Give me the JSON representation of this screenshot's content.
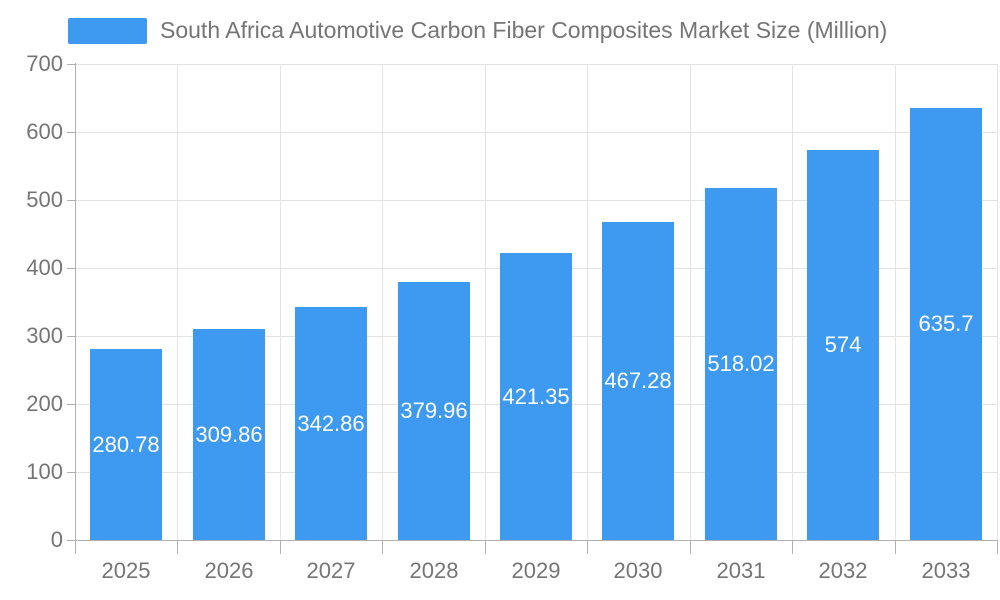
{
  "legend": {
    "label": "South Africa Automotive Carbon Fiber Composites Market Size (Million)"
  },
  "chart_data": {
    "type": "bar",
    "title": "South Africa Automotive Carbon Fiber Composites Market Size (Million)",
    "categories": [
      "2025",
      "2026",
      "2027",
      "2028",
      "2029",
      "2030",
      "2031",
      "2032",
      "2033"
    ],
    "values": [
      280.78,
      309.86,
      342.86,
      379.96,
      421.35,
      467.28,
      518.02,
      574,
      635.7
    ],
    "value_labels": [
      "280.78",
      "309.86",
      "342.86",
      "379.96",
      "421.35",
      "467.28",
      "518.02",
      "574",
      "635.7"
    ],
    "xlabel": "",
    "ylabel": "",
    "ylim": [
      0,
      700
    ],
    "ytick_interval": 100,
    "ytick_labels": [
      "0",
      "100",
      "200",
      "300",
      "400",
      "500",
      "600",
      "700"
    ],
    "grid": true,
    "legend_position": "top",
    "value_label_position": "inside-center"
  },
  "colors": {
    "bar": "#3d9af0",
    "bar_value_label": "#ffffff",
    "gridline": "#e3e3e3",
    "axis_line": "#b0b0b0",
    "tick_label": "#757575",
    "legend_text": "#757575",
    "background": "#ffffff"
  }
}
